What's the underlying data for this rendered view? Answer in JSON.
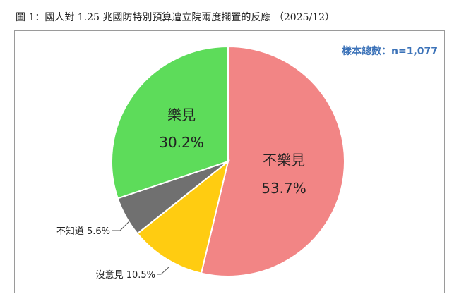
{
  "title": "圖 1：國人對 1.25 兆國防特別預算遭立院兩度擱置的反應 （2025/12）",
  "sample_label": "樣本總數：n=1,077",
  "colors": {
    "unhappy": "#f28585",
    "happy": "#5ddc5a",
    "unknown": "#707070",
    "no_opinion": "#ffcc11"
  },
  "chart_data": {
    "type": "pie",
    "title": "圖 1：國人對 1.25 兆國防特別預算遭立院兩度擱置的反應 （2025/12）",
    "start": "12 o'clock",
    "direction": "clockwise",
    "slices": [
      {
        "label": "不樂見",
        "value": 53.7,
        "value_label": "53.7%",
        "color": "#f28585",
        "label_position": "inside"
      },
      {
        "label": "沒意見",
        "value": 10.5,
        "value_label": "10.5%",
        "color": "#ffcc11",
        "label_position": "outside"
      },
      {
        "label": "不知道",
        "value": 5.6,
        "value_label": "5.6%",
        "color": "#707070",
        "label_position": "outside"
      },
      {
        "label": "樂見",
        "value": 30.2,
        "value_label": "30.2%",
        "color": "#5ddc5a",
        "label_position": "inside"
      }
    ]
  }
}
